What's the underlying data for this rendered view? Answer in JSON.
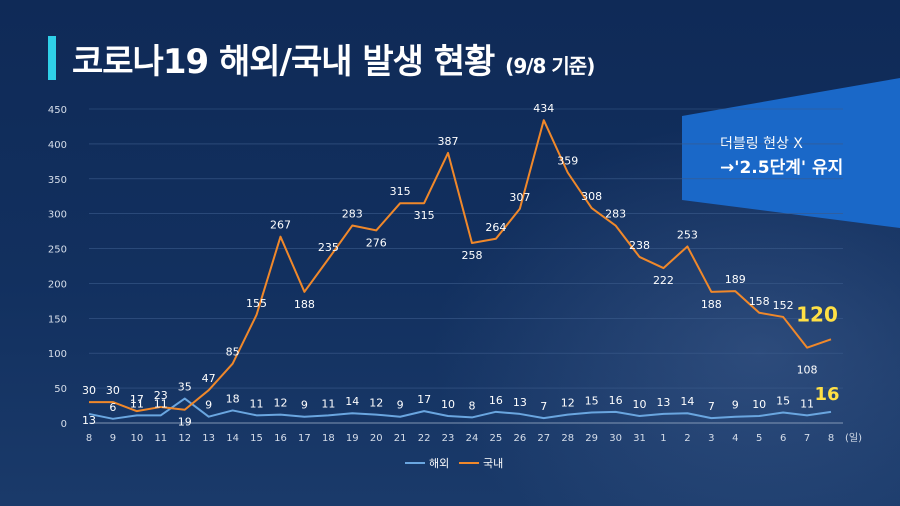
{
  "header": {
    "title": "코로나19 해외/국내 발생 현황",
    "date_note": "(9/8 기준)"
  },
  "banner": {
    "line1": "더블링 현상 X",
    "line2": "→'2.5단계' 유지"
  },
  "colors": {
    "domestic": "#f0882a",
    "overseas": "#6aa6e0",
    "accent": "#2fd0e8",
    "highlight": "#ffe045"
  },
  "chart_data": {
    "type": "line",
    "categories": [
      "8",
      "9",
      "10",
      "11",
      "12",
      "13",
      "14",
      "15",
      "16",
      "17",
      "18",
      "19",
      "20",
      "21",
      "22",
      "23",
      "24",
      "25",
      "26",
      "27",
      "28",
      "29",
      "30",
      "31",
      "1",
      "2",
      "3",
      "4",
      "5",
      "6",
      "7",
      "8"
    ],
    "x_unit": "(일)",
    "yticks": [
      0,
      50,
      100,
      150,
      200,
      250,
      300,
      350,
      400,
      450
    ],
    "ylim": [
      0,
      450
    ],
    "grid": true,
    "legend_position": "bottom-center",
    "series": [
      {
        "name": "해외",
        "values": [
          13,
          6,
          11,
          11,
          35,
          9,
          18,
          11,
          12,
          9,
          11,
          14,
          12,
          9,
          17,
          10,
          8,
          16,
          13,
          7,
          12,
          15,
          16,
          10,
          13,
          14,
          7,
          9,
          10,
          15,
          11,
          16
        ]
      },
      {
        "name": "국내",
        "values": [
          30,
          30,
          17,
          23,
          19,
          47,
          85,
          155,
          267,
          188,
          235,
          283,
          276,
          315,
          315,
          387,
          258,
          264,
          307,
          434,
          359,
          308,
          283,
          238,
          222,
          253,
          188,
          189,
          158,
          152,
          108,
          120
        ]
      }
    ],
    "highlight_last": {
      "domestic": "120",
      "overseas": "16"
    }
  }
}
